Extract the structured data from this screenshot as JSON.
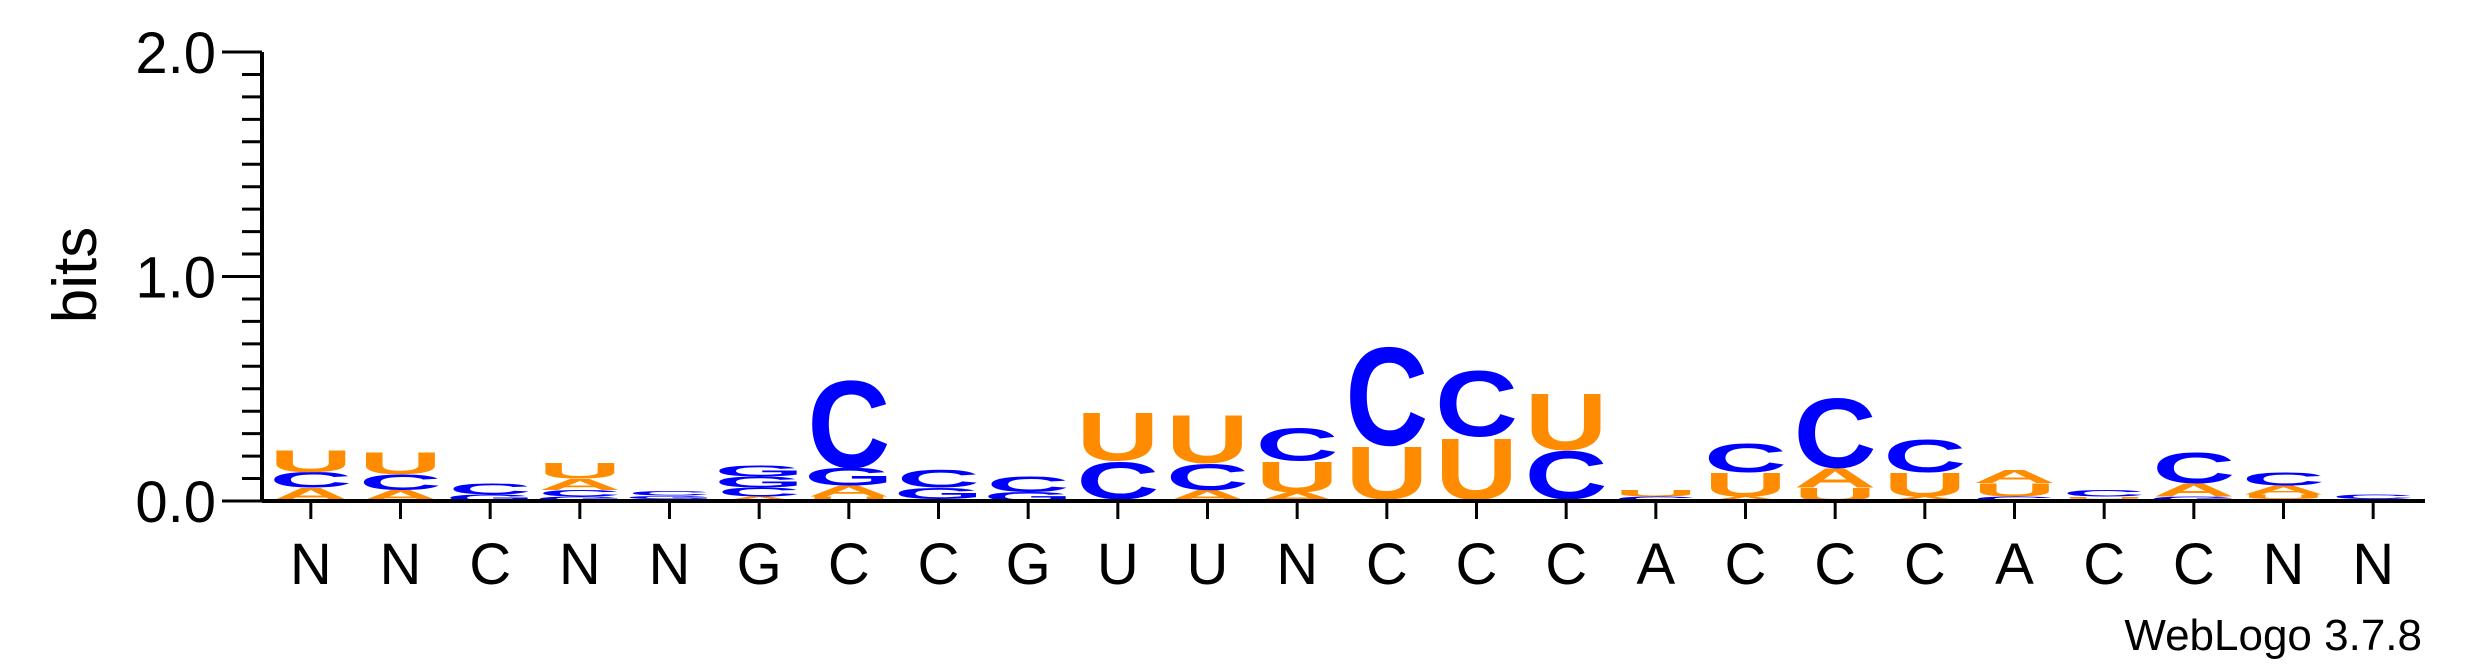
{
  "chart_data": {
    "type": "sequence_logo",
    "ylabel": "bits",
    "ylim": [
      0,
      2.0
    ],
    "yticks": [
      "0.0",
      "1.0",
      "2.0"
    ],
    "xlabels": [
      "N",
      "N",
      "C",
      "N",
      "N",
      "G",
      "C",
      "C",
      "G",
      "U",
      "U",
      "N",
      "C",
      "C",
      "C",
      "A",
      "C",
      "C",
      "C",
      "A",
      "C",
      "C",
      "N",
      "N"
    ],
    "colors": {
      "C": "#0000ff",
      "U": "#ff8c00",
      "A": "#ff8c00",
      "G": "#0000ff"
    },
    "columns": [
      [
        {
          "l": "A",
          "h": 0.06
        },
        {
          "l": "C",
          "h": 0.07
        },
        {
          "l": "U",
          "h": 0.1
        }
      ],
      [
        {
          "l": "A",
          "h": 0.05
        },
        {
          "l": "C",
          "h": 0.07
        },
        {
          "l": "U",
          "h": 0.1
        }
      ],
      [
        {
          "l": "G",
          "h": 0.03
        },
        {
          "l": "C",
          "h": 0.05
        }
      ],
      [
        {
          "l": "G",
          "h": 0.02
        },
        {
          "l": "C",
          "h": 0.03
        },
        {
          "l": "A",
          "h": 0.05
        },
        {
          "l": "U",
          "h": 0.07
        }
      ],
      [
        {
          "l": "A",
          "h": 0.01
        },
        {
          "l": "G",
          "h": 0.015
        },
        {
          "l": "C",
          "h": 0.02
        }
      ],
      [
        {
          "l": "A",
          "h": 0.02
        },
        {
          "l": "C",
          "h": 0.04
        },
        {
          "l": "G",
          "h": 0.05
        },
        {
          "l": "G",
          "h": 0.05
        }
      ],
      [
        {
          "l": "U",
          "h": 0.02
        },
        {
          "l": "A",
          "h": 0.05
        },
        {
          "l": "G",
          "h": 0.08
        },
        {
          "l": "C",
          "h": 0.4
        }
      ],
      [
        {
          "l": "A",
          "h": 0.01
        },
        {
          "l": "G",
          "h": 0.05
        },
        {
          "l": "C",
          "h": 0.08
        }
      ],
      [
        {
          "l": "G",
          "h": 0.04
        },
        {
          "l": "C",
          "h": 0.07
        }
      ],
      [
        {
          "l": "A",
          "h": 0.01
        },
        {
          "l": "C",
          "h": 0.17
        },
        {
          "l": "U",
          "h": 0.22
        }
      ],
      [
        {
          "l": "A",
          "h": 0.05
        },
        {
          "l": "C",
          "h": 0.12
        },
        {
          "l": "U",
          "h": 0.22
        }
      ],
      [
        {
          "l": "A",
          "h": 0.04
        },
        {
          "l": "U",
          "h": 0.14
        },
        {
          "l": "C",
          "h": 0.15
        }
      ],
      [
        {
          "l": "A",
          "h": 0.01
        },
        {
          "l": "U",
          "h": 0.24
        },
        {
          "l": "C",
          "h": 0.45
        }
      ],
      [
        {
          "l": "A",
          "h": 0.01
        },
        {
          "l": "U",
          "h": 0.28
        },
        {
          "l": "C",
          "h": 0.3
        }
      ],
      [
        {
          "l": "A",
          "h": 0.01
        },
        {
          "l": "C",
          "h": 0.22
        },
        {
          "l": "U",
          "h": 0.26
        }
      ],
      [
        {
          "l": "C",
          "h": 0.02
        },
        {
          "l": "U",
          "h": 0.03
        }
      ],
      [
        {
          "l": "A",
          "h": 0.02
        },
        {
          "l": "U",
          "h": 0.11
        },
        {
          "l": "C",
          "h": 0.13
        }
      ],
      [
        {
          "l": "U",
          "h": 0.06
        },
        {
          "l": "A",
          "h": 0.09
        },
        {
          "l": "C",
          "h": 0.32
        }
      ],
      [
        {
          "l": "A",
          "h": 0.02
        },
        {
          "l": "U",
          "h": 0.11
        },
        {
          "l": "C",
          "h": 0.15
        }
      ],
      [
        {
          "l": "C",
          "h": 0.02
        },
        {
          "l": "U",
          "h": 0.06
        },
        {
          "l": "A",
          "h": 0.06
        }
      ],
      [
        {
          "l": "A",
          "h": 0.01
        },
        {
          "l": "U",
          "h": 0.01
        },
        {
          "l": "C",
          "h": 0.03
        }
      ],
      [
        {
          "l": "G",
          "h": 0.02
        },
        {
          "l": "A",
          "h": 0.06
        },
        {
          "l": "C",
          "h": 0.14
        }
      ],
      [
        {
          "l": "G",
          "h": 0.01
        },
        {
          "l": "U",
          "h": 0.02
        },
        {
          "l": "A",
          "h": 0.04
        },
        {
          "l": "C",
          "h": 0.06
        }
      ],
      [
        {
          "l": "A",
          "h": 0.01
        },
        {
          "l": "C",
          "h": 0.02
        }
      ]
    ]
  },
  "footer": {
    "credit": "WebLogo 3.7.8"
  }
}
